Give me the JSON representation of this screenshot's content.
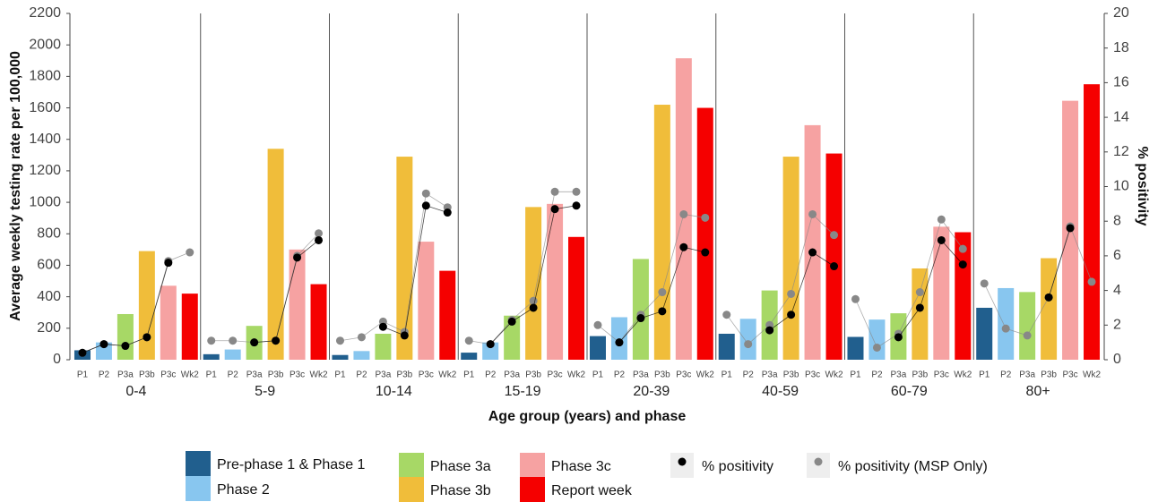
{
  "chart_data": {
    "type": "bar",
    "x_label": "Age group (years) and phase",
    "y_label": "Average weekly testing rate per 100,000",
    "y2_label": "% positivity",
    "categories": [
      "0-4",
      "5-9",
      "10-14",
      "15-19",
      "20-39",
      "40-59",
      "60-79",
      "80+"
    ],
    "phase_labels": [
      "P1",
      "P2",
      "P3a",
      "P3b",
      "P3c",
      "Wk2"
    ],
    "ylim": [
      0,
      2200
    ],
    "yticks": [
      0,
      200,
      400,
      600,
      800,
      1000,
      1200,
      1400,
      1600,
      1800,
      2000,
      2200
    ],
    "y2lim": [
      0,
      20
    ],
    "y2ticks": [
      0,
      2,
      4,
      6,
      8,
      10,
      12,
      14,
      16,
      18,
      20
    ],
    "series": [
      {
        "name": "Pre-phase 1 & Phase 1",
        "color": "#215f8e",
        "values": [
          60,
          35,
          30,
          45,
          150,
          165,
          145,
          330
        ]
      },
      {
        "name": "Phase 2",
        "color": "#88c6ef",
        "values": [
          110,
          65,
          55,
          110,
          270,
          260,
          255,
          455
        ]
      },
      {
        "name": "Phase 3a",
        "color": "#a7d866",
        "values": [
          290,
          215,
          165,
          280,
          640,
          440,
          295,
          430
        ]
      },
      {
        "name": "Phase 3b",
        "color": "#f0bd3a",
        "values": [
          690,
          1340,
          1290,
          970,
          1620,
          1290,
          580,
          645
        ]
      },
      {
        "name": "Phase 3c",
        "color": "#f6a2a2",
        "values": [
          470,
          700,
          750,
          990,
          1915,
          1490,
          845,
          1645
        ]
      },
      {
        "name": "Report week",
        "color": "#f50000",
        "values": [
          420,
          480,
          565,
          780,
          1600,
          1310,
          810,
          1750
        ]
      },
      {
        "name": "% positivity",
        "color": "#000000",
        "axis": "y2",
        "values": [
          [
            0.4,
            0.9,
            0.8,
            1.3,
            5.6,
            null
          ],
          [
            null,
            null,
            1.0,
            1.1,
            5.9,
            6.9
          ],
          [
            null,
            null,
            1.9,
            1.4,
            8.9,
            8.5
          ],
          [
            null,
            0.9,
            2.2,
            3.0,
            8.7,
            8.9
          ],
          [
            null,
            1.0,
            2.4,
            2.8,
            6.5,
            6.2
          ],
          [
            null,
            null,
            1.7,
            2.6,
            6.2,
            5.4
          ],
          [
            null,
            null,
            1.3,
            3.0,
            6.9,
            5.5
          ],
          [
            null,
            null,
            null,
            3.6,
            7.6,
            null
          ]
        ]
      },
      {
        "name": "% positivity (MSP Only)",
        "color": "#888888",
        "axis": "y2",
        "values": [
          [
            0.4,
            0.9,
            0.8,
            1.3,
            5.7,
            6.2
          ],
          [
            1.1,
            1.1,
            1.0,
            1.1,
            6.0,
            7.3
          ],
          [
            1.1,
            1.3,
            2.2,
            1.6,
            9.6,
            8.8
          ],
          [
            1.1,
            0.9,
            2.3,
            3.4,
            9.7,
            9.7
          ],
          [
            2.0,
            1.0,
            2.6,
            3.9,
            8.4,
            8.2
          ],
          [
            2.6,
            0.9,
            2.0,
            3.8,
            8.4,
            7.2
          ],
          [
            3.5,
            0.7,
            1.5,
            3.9,
            8.1,
            6.4
          ],
          [
            4.4,
            1.8,
            1.4,
            3.6,
            7.7,
            4.5
          ]
        ]
      }
    ]
  }
}
